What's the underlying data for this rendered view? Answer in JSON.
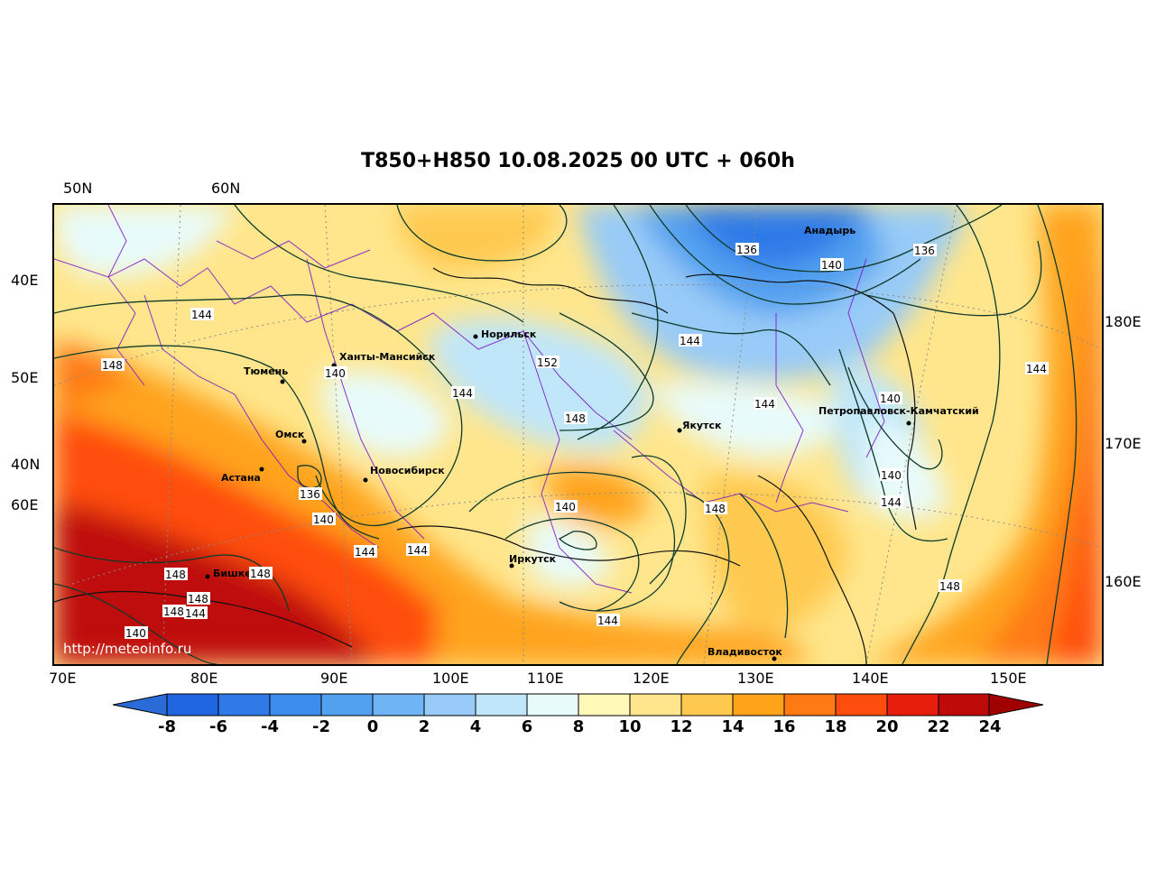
{
  "title": "T850+H850 10.08.2025 00 UTC + 060h",
  "watermark": "http://meteoinfo.ru",
  "lat_labels_top": [
    "50N",
    "60N"
  ],
  "lat_labels_left": [
    "40E",
    "50E",
    "40N",
    "60E"
  ],
  "lon_labels_right": [
    "180E",
    "170E",
    "160E"
  ],
  "lon_labels_bottom": [
    "70E",
    "80E",
    "90E",
    "100E",
    "110E",
    "120E",
    "130E",
    "140E",
    "150E"
  ],
  "cities": [
    "Норильск",
    "Ханты-Мансийск",
    "Тюмень",
    "Омск",
    "Астана",
    "Новосибирск",
    "Бишкек",
    "Иркутск",
    "Якутск",
    "Анадырь",
    "Петропавловск-Камчатский",
    "Владивосток"
  ],
  "isolines": [
    "136",
    "136",
    "140",
    "144",
    "144",
    "148",
    "140",
    "152",
    "144",
    "148",
    "144",
    "144",
    "148",
    "136",
    "140",
    "148",
    "140",
    "140",
    "144",
    "144",
    "144",
    "148",
    "148",
    "148",
    "144",
    "140",
    "144",
    "140",
    "148"
  ],
  "colorbar": {
    "ticks": [
      "-8",
      "-6",
      "-4",
      "-2",
      "0",
      "2",
      "4",
      "6",
      "8",
      "10",
      "12",
      "14",
      "16",
      "18",
      "20",
      "22",
      "24"
    ],
    "low_color": "#2a6bd8",
    "colors": [
      "#1f66e0",
      "#2f7ae8",
      "#3d8ded",
      "#52a0f0",
      "#6fb4f4",
      "#98cbf7",
      "#bfe6f9",
      "#e8fbfb",
      "#fff8b6",
      "#ffe68c",
      "#ffc94f",
      "#ffa31a",
      "#ff7a12",
      "#ff4d0d",
      "#e81e0c",
      "#bf0a0a"
    ],
    "high_color": "#a00000"
  }
}
